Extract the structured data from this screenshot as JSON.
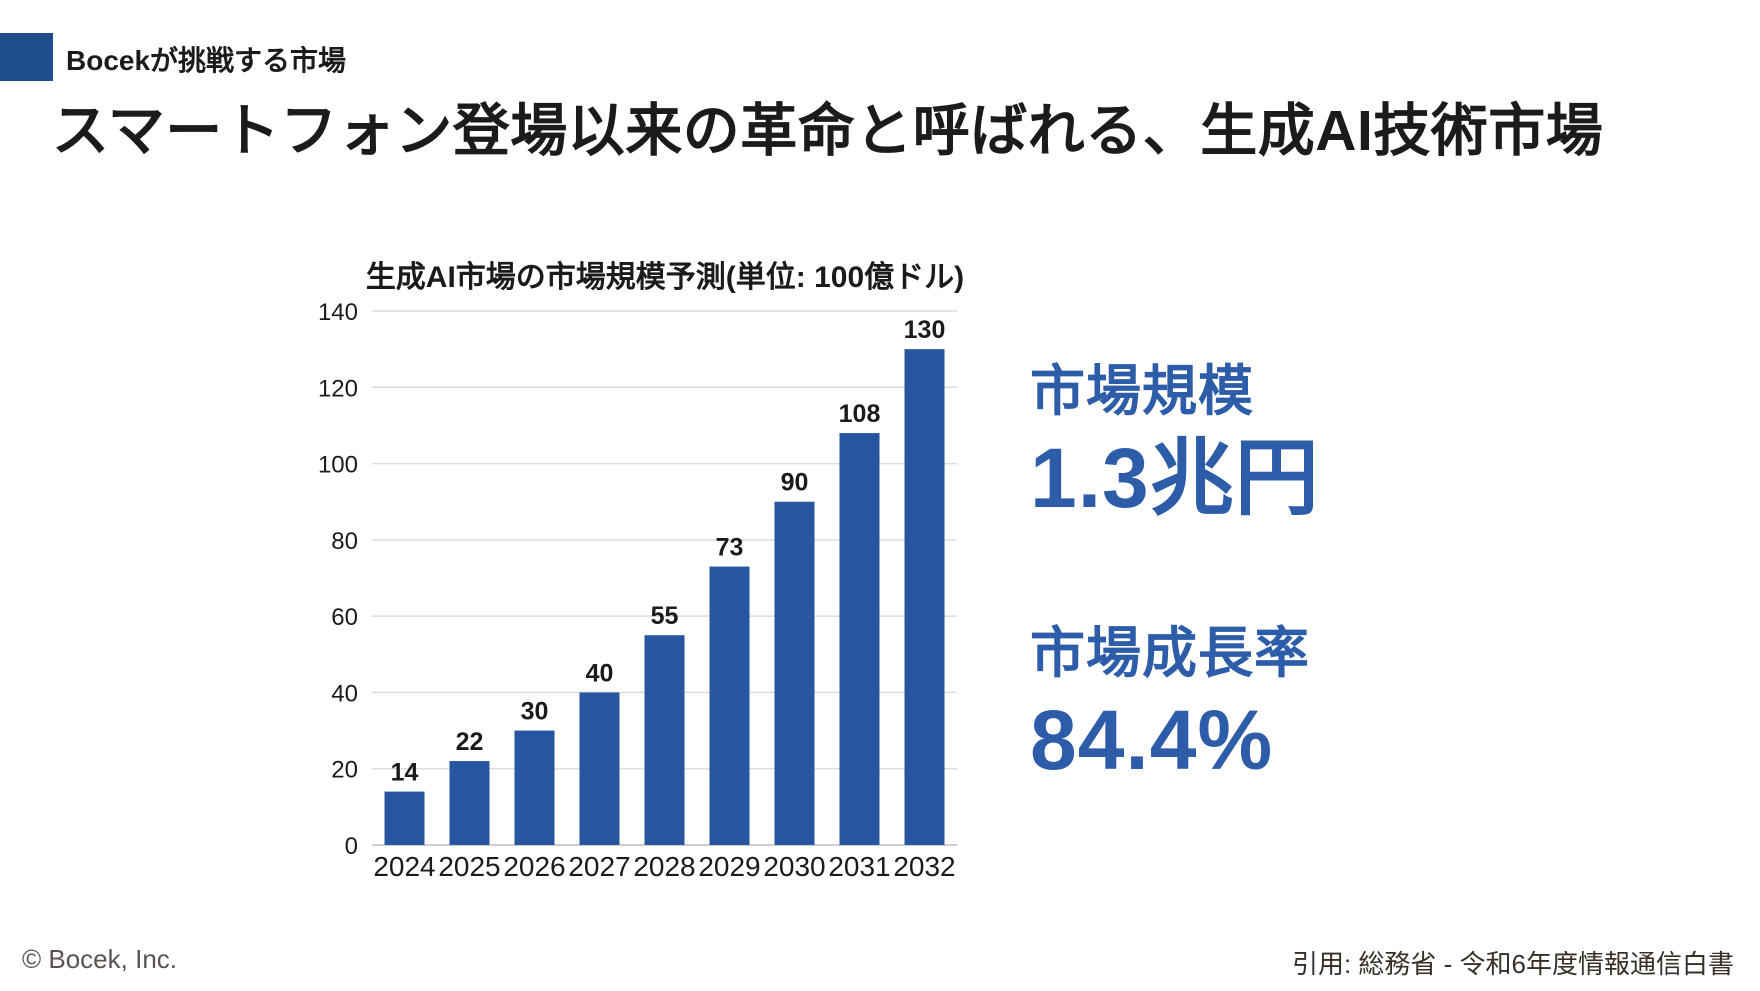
{
  "slide": {
    "kicker": "Bocekが挑戦する市場",
    "title": "スマートフォン登場以来の革命と呼ばれる、生成AI技術市場",
    "footer_left": "© Bocek, Inc.",
    "footer_right": "引用: 総務省 - 令和6年度情報通信白書"
  },
  "stats": [
    {
      "label": "市場規模",
      "value": "1.3兆円"
    },
    {
      "label": "市場成長率",
      "value": "84.4%"
    }
  ],
  "colors": {
    "accent_square": "#1F4E8F",
    "stat_text": "#2D5CA8",
    "axis_text": "#1b1b1b",
    "gridline": "#dcdcdc",
    "baseline": "#bdbdbd"
  },
  "chart_data": {
    "type": "bar",
    "title": "生成AI市場の市場規模予測(単位: 100億ドル)",
    "categories": [
      "2024",
      "2025",
      "2026",
      "2027",
      "2028",
      "2029",
      "2030",
      "2031",
      "2032"
    ],
    "values": [
      14,
      22,
      30,
      40,
      55,
      73,
      90,
      108,
      130
    ],
    "xlabel": "",
    "ylabel": "",
    "ylim": [
      0,
      140
    ],
    "ytick_step": 20,
    "grid": true,
    "legend": "none",
    "data_labels": true,
    "bar_color": "#27559F"
  }
}
